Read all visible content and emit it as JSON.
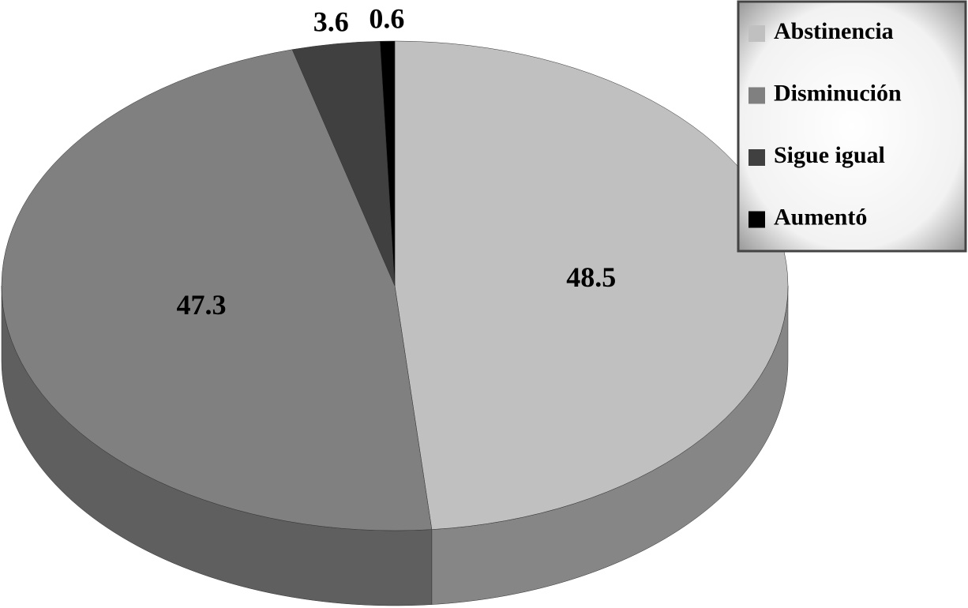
{
  "chart_data": {
    "type": "pie3d",
    "categories": [
      "Abstinencia",
      "Disminución",
      "Sigue igual",
      "Aumentó"
    ],
    "values": [
      48.5,
      47.3,
      3.6,
      0.6
    ],
    "colors": [
      "#c0c0c0",
      "#808080",
      "#404040",
      "#000000"
    ],
    "legend": "top-right"
  }
}
